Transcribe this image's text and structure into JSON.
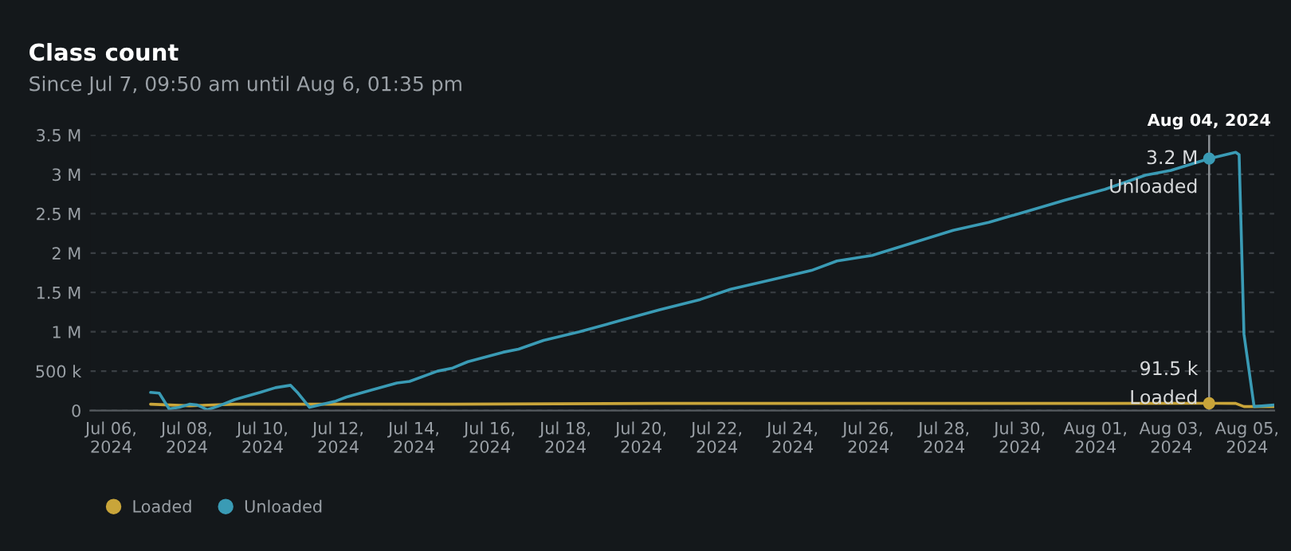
{
  "chart_data": {
    "type": "line",
    "title": "Class count",
    "subtitle": "Since Jul 7, 09:50 am until Aug 6, 01:35 pm",
    "xlim": [
      "2024-07-05T10:50",
      "2024-08-05T17:15"
    ],
    "xticks": [
      {
        "value": "2024-07-06",
        "label": "Jul 06,\n2024"
      },
      {
        "value": "2024-07-08",
        "label": "Jul 08,\n2024"
      },
      {
        "value": "2024-07-10",
        "label": "Jul 10,\n2024"
      },
      {
        "value": "2024-07-12",
        "label": "Jul 12,\n2024"
      },
      {
        "value": "2024-07-14",
        "label": "Jul 14,\n2024"
      },
      {
        "value": "2024-07-16",
        "label": "Jul 16,\n2024"
      },
      {
        "value": "2024-07-18",
        "label": "Jul 18,\n2024"
      },
      {
        "value": "2024-07-20",
        "label": "Jul 20,\n2024"
      },
      {
        "value": "2024-07-22",
        "label": "Jul 22,\n2024"
      },
      {
        "value": "2024-07-24",
        "label": "Jul 24,\n2024"
      },
      {
        "value": "2024-07-26",
        "label": "Jul 26,\n2024"
      },
      {
        "value": "2024-07-28",
        "label": "Jul 28,\n2024"
      },
      {
        "value": "2024-07-30",
        "label": "Jul 30,\n2024"
      },
      {
        "value": "2024-08-01",
        "label": "Aug 01,\n2024"
      },
      {
        "value": "2024-08-03",
        "label": "Aug 03,\n2024"
      },
      {
        "value": "2024-08-05",
        "label": "Aug 05,\n2024"
      }
    ],
    "ylim": [
      0,
      3500000
    ],
    "yticks": [
      {
        "value": 0,
        "label": "0"
      },
      {
        "value": 500000,
        "label": "500 k"
      },
      {
        "value": 1000000,
        "label": "1 M"
      },
      {
        "value": 1500000,
        "label": "1.5 M"
      },
      {
        "value": 2000000,
        "label": "2 M"
      },
      {
        "value": 2500000,
        "label": "2.5 M"
      },
      {
        "value": 3000000,
        "label": "3 M"
      },
      {
        "value": 3500000,
        "label": "3.5 M"
      }
    ],
    "grid": "y",
    "legend": "bottom left",
    "marker": "none",
    "line_style": "solid",
    "ref_lines": [
      {
        "axis": "x",
        "value": "2024-08-04T00:00",
        "label": "Aug 04, 2024",
        "color": "#8a8f94"
      }
    ],
    "annotations": [
      {
        "text": "3.2 M",
        "x": "2024-08-04T00:00",
        "y": 3200000
      },
      {
        "text": "Unloaded",
        "x": "2024-08-04T00:00",
        "y": 3200000
      },
      {
        "text": "91.5 k",
        "x": "2024-08-04T00:00",
        "y": 91500
      },
      {
        "text": "Loaded",
        "x": "2024-08-04T00:00",
        "y": 91500
      }
    ],
    "series": [
      {
        "name": "Loaded",
        "color": "#c9a53a",
        "x": [
          "2024-07-07T01:00",
          "2024-07-08T01:40",
          "2024-07-09T06:30",
          "2024-07-11T05:45",
          "2024-07-15T00:30",
          "2024-07-20T11:45",
          "2024-07-26T02:25",
          "2024-08-01T06:00",
          "2024-08-04T00:00",
          "2024-08-04T16:50",
          "2024-08-04T22:05",
          "2024-08-05T17:15"
        ],
        "values": [
          80000,
          60000,
          80000,
          80000,
          80000,
          90000,
          90000,
          90000,
          91500,
          90000,
          50000,
          50000
        ]
      },
      {
        "name": "Unloaded",
        "color": "#3a9bb5",
        "x": [
          "2024-07-07T01:00",
          "2024-07-07T06:30",
          "2024-07-07T12:45",
          "2024-07-07T19:10",
          "2024-07-08T01:40",
          "2024-07-08T06:30",
          "2024-07-08T13:00",
          "2024-07-08T19:10",
          "2024-07-09T06:30",
          "2024-07-09T22:30",
          "2024-07-10T08:10",
          "2024-07-10T17:45",
          "2024-07-10T22:30",
          "2024-07-11T05:45",
          "2024-07-11T22:30",
          "2024-07-12T05:00",
          "2024-07-12T21:10",
          "2024-07-13T13:10",
          "2024-07-13T21:10",
          "2024-07-14T14:50",
          "2024-07-15T00:30",
          "2024-07-15T10:10",
          "2024-07-16T08:25",
          "2024-07-16T18:15",
          "2024-07-17T10:05",
          "2024-07-18T08:40",
          "2024-07-19T10:20",
          "2024-07-20T11:45",
          "2024-07-21T13:25",
          "2024-07-22T08:40",
          "2024-07-23T10:20",
          "2024-07-24T12:00",
          "2024-07-25T04:05",
          "2024-07-26T02:25",
          "2024-07-27T04:05",
          "2024-07-28T05:45",
          "2024-07-29T04:20",
          "2024-07-30T02:40",
          "2024-07-31T04:20",
          "2024-08-01T06:00",
          "2024-08-02T07:40",
          "2024-08-02T23:45",
          "2024-08-04T00:00",
          "2024-08-04T16:50",
          "2024-08-04T19:00",
          "2024-08-04T22:05",
          "2024-08-05T04:30",
          "2024-08-05T17:15"
        ],
        "values": [
          230000,
          220000,
          20000,
          40000,
          80000,
          70000,
          10000,
          50000,
          140000,
          230000,
          290000,
          320000,
          220000,
          40000,
          120000,
          170000,
          260000,
          350000,
          370000,
          500000,
          540000,
          620000,
          740000,
          780000,
          890000,
          1000000,
          1140000,
          1280000,
          1410000,
          1540000,
          1660000,
          1780000,
          1900000,
          1970000,
          2130000,
          2290000,
          2390000,
          2520000,
          2670000,
          2810000,
          2990000,
          3050000,
          3200000,
          3280000,
          3250000,
          970000,
          50000,
          70000
        ]
      }
    ]
  }
}
